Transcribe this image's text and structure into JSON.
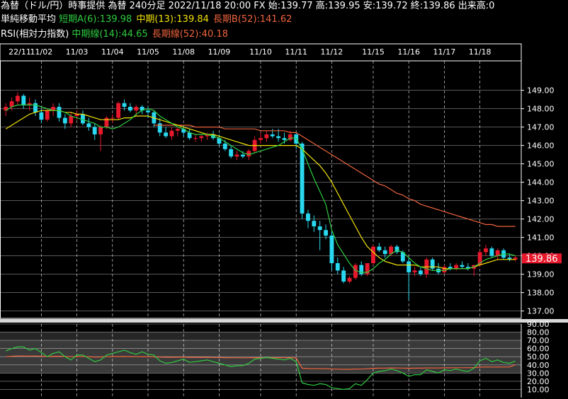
{
  "header": {
    "line1": "為替（ドル/円）時事提供 為替 240分足 2022/11/18 20:00 FX 始:139.77 高:139.95 安:139.72 終:139.86 出来高:0",
    "sma_label": "単純移動平均",
    "sma_short": "短期A(6):139.98",
    "sma_mid": "中期(13):139.84",
    "sma_long": "長期B(52):141.62",
    "rsi_label": "RSI(相対力指数)",
    "rsi_mid": "中期線(14):44.65",
    "rsi_long": "長期線(52):40.18"
  },
  "colors": {
    "up": "#e8192c",
    "down": "#29d8f0",
    "sma_short": "#2ecc40",
    "sma_mid": "#f2e205",
    "sma_long": "#f0643c",
    "last_price_bg": "#e8192c"
  },
  "chart_data": [
    {
      "type": "candlestick",
      "x_ticks": [
        "22/11",
        "11/02",
        "11/03",
        "11/04",
        "11/05",
        "11/08",
        "11/09",
        "11/10",
        "11/11",
        "11/12",
        "11/15",
        "11/16",
        "11/17",
        "11/18"
      ],
      "y_ticks": [
        "149.00",
        "148.00",
        "147.00",
        "146.00",
        "145.00",
        "144.00",
        "143.00",
        "142.00",
        "141.00",
        "140.00",
        "139.00",
        "138.00",
        "137.00"
      ],
      "ylim": [
        136.6,
        150.6
      ],
      "last_price": "139.86",
      "grid": true,
      "ohlc": [
        [
          147.9,
          148.3,
          147.6,
          148.1
        ],
        [
          148.1,
          148.6,
          147.9,
          148.4
        ],
        [
          148.4,
          148.9,
          148.2,
          148.7
        ],
        [
          148.7,
          148.8,
          148.0,
          148.2
        ],
        [
          148.2,
          148.6,
          147.9,
          148.3
        ],
        [
          148.3,
          148.5,
          147.6,
          147.8
        ],
        [
          147.8,
          148.0,
          147.2,
          147.4
        ],
        [
          147.4,
          148.0,
          147.3,
          147.9
        ],
        [
          147.9,
          148.3,
          147.6,
          148.1
        ],
        [
          148.1,
          148.3,
          147.3,
          147.5
        ],
        [
          147.5,
          147.7,
          146.9,
          147.2
        ],
        [
          147.2,
          147.8,
          147.0,
          147.6
        ],
        [
          147.6,
          147.9,
          147.4,
          147.7
        ],
        [
          147.7,
          147.9,
          147.1,
          147.2
        ],
        [
          147.2,
          147.5,
          146.8,
          147.0
        ],
        [
          147.0,
          147.2,
          146.3,
          146.6
        ],
        [
          146.6,
          147.1,
          145.7,
          147.0
        ],
        [
          147.0,
          147.6,
          146.9,
          147.5
        ],
        [
          147.5,
          147.7,
          147.2,
          147.5
        ],
        [
          147.5,
          148.4,
          147.4,
          148.3
        ],
        [
          148.3,
          148.5,
          147.9,
          148.1
        ],
        [
          148.1,
          148.3,
          147.8,
          147.9
        ],
        [
          147.9,
          148.2,
          147.6,
          148.1
        ],
        [
          148.1,
          148.2,
          147.7,
          147.9
        ],
        [
          147.9,
          148.1,
          147.5,
          147.8
        ],
        [
          147.8,
          147.9,
          147.0,
          147.2
        ],
        [
          147.2,
          147.5,
          146.5,
          146.7
        ],
        [
          146.7,
          147.0,
          146.4,
          146.5
        ],
        [
          146.5,
          147.0,
          146.3,
          146.8
        ],
        [
          146.8,
          147.0,
          146.5,
          146.9
        ],
        [
          146.9,
          147.1,
          146.5,
          146.7
        ],
        [
          146.7,
          146.9,
          146.3,
          146.4
        ],
        [
          146.4,
          146.6,
          146.2,
          146.4
        ],
        [
          146.4,
          146.6,
          146.2,
          146.5
        ],
        [
          146.5,
          146.7,
          146.3,
          146.6
        ],
        [
          146.6,
          146.8,
          146.3,
          146.4
        ],
        [
          146.4,
          146.6,
          146.0,
          146.1
        ],
        [
          146.1,
          146.3,
          145.7,
          145.8
        ],
        [
          145.8,
          146.0,
          145.3,
          145.4
        ],
        [
          145.4,
          145.7,
          145.2,
          145.5
        ],
        [
          145.5,
          145.7,
          145.3,
          145.4
        ],
        [
          145.4,
          145.8,
          145.2,
          145.7
        ],
        [
          145.7,
          146.5,
          145.6,
          146.3
        ],
        [
          146.3,
          146.7,
          146.1,
          146.4
        ],
        [
          146.4,
          146.8,
          146.2,
          146.6
        ],
        [
          146.6,
          146.9,
          146.4,
          146.5
        ],
        [
          146.5,
          146.9,
          146.2,
          146.4
        ],
        [
          146.4,
          146.7,
          146.1,
          146.3
        ],
        [
          146.3,
          146.8,
          146.2,
          146.6
        ],
        [
          146.6,
          146.7,
          145.8,
          146.1
        ],
        [
          146.1,
          146.2,
          142.0,
          142.3
        ],
        [
          142.3,
          142.5,
          141.5,
          141.9
        ],
        [
          141.9,
          142.2,
          141.3,
          141.6
        ],
        [
          141.6,
          141.9,
          140.3,
          141.4
        ],
        [
          141.4,
          141.7,
          140.9,
          141.1
        ],
        [
          141.1,
          141.3,
          139.2,
          139.6
        ],
        [
          139.6,
          139.9,
          139.0,
          139.2
        ],
        [
          139.2,
          139.4,
          138.5,
          138.6
        ],
        [
          138.6,
          138.9,
          138.5,
          138.8
        ],
        [
          138.8,
          139.6,
          138.7,
          139.5
        ],
        [
          139.5,
          139.7,
          138.9,
          139.0
        ],
        [
          139.0,
          139.6,
          138.9,
          139.6
        ],
        [
          139.6,
          140.6,
          139.5,
          140.5
        ],
        [
          140.5,
          140.7,
          140.2,
          140.3
        ],
        [
          140.3,
          140.5,
          139.9,
          140.1
        ],
        [
          140.1,
          140.6,
          140.0,
          140.5
        ],
        [
          140.5,
          140.6,
          140.1,
          140.2
        ],
        [
          140.2,
          140.3,
          139.6,
          139.7
        ],
        [
          139.7,
          139.9,
          137.6,
          139.1
        ],
        [
          139.1,
          139.4,
          138.9,
          139.2
        ],
        [
          139.2,
          139.4,
          138.9,
          139.0
        ],
        [
          139.0,
          139.9,
          138.8,
          139.8
        ],
        [
          139.8,
          139.9,
          139.2,
          139.3
        ],
        [
          139.3,
          139.6,
          139.0,
          139.1
        ],
        [
          139.1,
          139.5,
          139.0,
          139.4
        ],
        [
          139.4,
          139.6,
          139.2,
          139.3
        ],
        [
          139.3,
          139.6,
          139.2,
          139.5
        ],
        [
          139.5,
          139.7,
          139.3,
          139.4
        ],
        [
          139.4,
          139.6,
          139.2,
          139.3
        ],
        [
          139.3,
          139.5,
          138.9,
          139.5
        ],
        [
          139.5,
          140.3,
          139.4,
          140.2
        ],
        [
          140.2,
          140.6,
          140.0,
          140.4
        ],
        [
          140.4,
          140.5,
          139.9,
          140.0
        ],
        [
          140.0,
          140.4,
          139.8,
          140.3
        ],
        [
          140.3,
          140.4,
          139.8,
          139.9
        ],
        [
          139.9,
          140.1,
          139.7,
          139.8
        ],
        [
          139.8,
          140.0,
          139.7,
          139.9
        ]
      ],
      "sma_short": [
        147.9,
        148.1,
        148.2,
        148.2,
        148.2,
        148.2,
        148.1,
        148.0,
        147.9,
        147.9,
        147.8,
        147.6,
        147.5,
        147.4,
        147.3,
        147.2,
        147.0,
        147.0,
        146.9,
        147.0,
        147.2,
        147.4,
        147.7,
        147.9,
        148.0,
        147.9,
        147.6,
        147.4,
        147.2,
        147.0,
        146.9,
        146.7,
        146.6,
        146.6,
        146.6,
        146.5,
        146.4,
        146.2,
        146.0,
        145.8,
        145.6,
        145.5,
        145.6,
        145.7,
        145.8,
        145.9,
        146.0,
        146.2,
        146.4,
        146.4,
        145.8,
        145.0,
        144.2,
        143.5,
        142.8,
        141.4,
        140.6,
        140.1,
        139.6,
        139.2,
        139.1,
        139.1,
        139.3,
        139.6,
        139.8,
        140.1,
        140.3,
        140.2,
        139.9,
        139.6,
        139.4,
        139.3,
        139.2,
        139.2,
        139.2,
        139.3,
        139.3,
        139.3,
        139.3,
        139.4,
        139.6,
        139.8,
        139.9,
        140.0,
        140.1,
        140.1,
        140.0
      ],
      "sma_mid": [
        146.9,
        147.1,
        147.3,
        147.5,
        147.7,
        147.8,
        147.9,
        147.9,
        147.9,
        147.9,
        147.8,
        147.8,
        147.7,
        147.7,
        147.6,
        147.5,
        147.4,
        147.4,
        147.4,
        147.4,
        147.5,
        147.5,
        147.6,
        147.6,
        147.6,
        147.5,
        147.4,
        147.3,
        147.2,
        147.1,
        147.0,
        146.9,
        146.8,
        146.7,
        146.6,
        146.6,
        146.5,
        146.4,
        146.3,
        146.2,
        146.1,
        146.0,
        146.0,
        146.0,
        146.0,
        146.0,
        146.0,
        146.0,
        146.0,
        146.0,
        145.8,
        145.5,
        145.2,
        144.9,
        144.5,
        144.0,
        143.4,
        142.8,
        142.2,
        141.6,
        141.0,
        140.5,
        140.2,
        139.9,
        139.7,
        139.6,
        139.5,
        139.5,
        139.5,
        139.5,
        139.4,
        139.4,
        139.4,
        139.4,
        139.3,
        139.3,
        139.3,
        139.3,
        139.3,
        139.4,
        139.5,
        139.6,
        139.7,
        139.8,
        139.8,
        139.8,
        139.8
      ],
      "sma_long": [
        null,
        null,
        null,
        null,
        null,
        null,
        null,
        null,
        null,
        null,
        null,
        null,
        null,
        null,
        null,
        null,
        null,
        null,
        null,
        null,
        null,
        null,
        null,
        null,
        null,
        147.1,
        147.1,
        147.1,
        147.1,
        147.1,
        147.1,
        147.1,
        147.0,
        147.0,
        147.0,
        147.0,
        147.0,
        146.9,
        146.9,
        146.9,
        146.9,
        146.9,
        146.9,
        146.8,
        146.8,
        146.8,
        146.8,
        146.8,
        146.7,
        146.7,
        146.5,
        146.3,
        146.1,
        145.9,
        145.7,
        145.5,
        145.3,
        145.1,
        144.9,
        144.7,
        144.5,
        144.3,
        144.1,
        143.9,
        143.8,
        143.6,
        143.4,
        143.3,
        143.1,
        143.0,
        142.8,
        142.7,
        142.6,
        142.5,
        142.4,
        142.3,
        142.2,
        142.1,
        142.0,
        141.9,
        141.8,
        141.7,
        141.7,
        141.6,
        141.6,
        141.6,
        141.6
      ]
    },
    {
      "type": "line",
      "y_ticks": [
        "90.00",
        "80.00",
        "70.00",
        "60.00",
        "50.00",
        "40.00",
        "30.00",
        "20.00",
        "10.00"
      ],
      "ylim": [
        0,
        90
      ],
      "series": [
        {
          "values": [
            57,
            60,
            62,
            62,
            58,
            60,
            55,
            50,
            54,
            56,
            50,
            46,
            52,
            52,
            48,
            44,
            46,
            52,
            54,
            56,
            58,
            55,
            53,
            56,
            53,
            52,
            45,
            42,
            43,
            45,
            47,
            43,
            44,
            45,
            46,
            44,
            42,
            40,
            38,
            39,
            39,
            42,
            47,
            48,
            49,
            48,
            47,
            46,
            48,
            44,
            18,
            16,
            15,
            17,
            16,
            12,
            11,
            10,
            11,
            17,
            15,
            22,
            30,
            32,
            33,
            35,
            33,
            30,
            26,
            28,
            28,
            34,
            32,
            30,
            34,
            33,
            35,
            33,
            32,
            36,
            45,
            48,
            44,
            46,
            43,
            42,
            44.65
          ]
        },
        {
          "values": [
            50,
            50.5,
            51,
            51,
            50.8,
            50.9,
            50.6,
            50.3,
            50.5,
            50.6,
            50.3,
            50,
            50.2,
            50.2,
            49.9,
            49.6,
            49.7,
            50,
            50.1,
            50.2,
            50.3,
            50.1,
            50,
            50.1,
            49.9,
            49.8,
            49.5,
            49.3,
            49.3,
            49.4,
            49.4,
            49.2,
            49.2,
            49.2,
            49.2,
            49.1,
            49,
            48.8,
            48.7,
            48.7,
            48.6,
            48.7,
            48.8,
            48.8,
            48.9,
            48.8,
            48.8,
            48.7,
            48.8,
            48.5,
            36,
            35.5,
            35.3,
            35.4,
            35.3,
            35,
            34.8,
            34.6,
            34.6,
            35,
            34.9,
            35.3,
            35.8,
            36,
            36.1,
            36.3,
            36.2,
            36.1,
            35.9,
            36,
            36,
            36.3,
            36.3,
            36.2,
            36.4,
            36.4,
            36.5,
            36.5,
            36.5,
            36.7,
            37.2,
            37.5,
            37.4,
            37.5,
            37.4,
            37.4,
            40.18
          ]
        }
      ]
    }
  ]
}
